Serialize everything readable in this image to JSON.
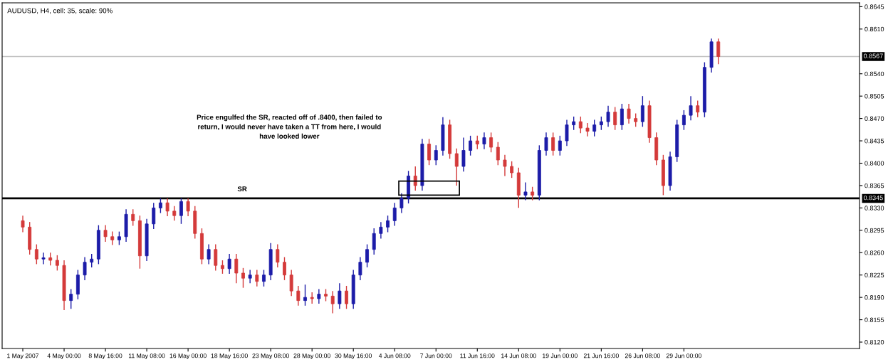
{
  "chart_data": {
    "type": "candlestick",
    "title": "AUDUSD, H4, cell: 35, scale: 90%",
    "categories": [
      "1 May 2007",
      null,
      null,
      null,
      null,
      null,
      "4 May 00:00",
      null,
      null,
      null,
      null,
      null,
      "8 May 16:00",
      null,
      null,
      null,
      null,
      null,
      "11 May 08:00",
      null,
      null,
      null,
      null,
      null,
      "16 May 00:00",
      null,
      null,
      null,
      null,
      null,
      "18 May 16:00",
      null,
      null,
      null,
      null,
      null,
      "23 May 08:00",
      null,
      null,
      null,
      null,
      null,
      "28 May 00:00",
      null,
      null,
      null,
      null,
      null,
      "30 May 16:00",
      null,
      null,
      null,
      null,
      null,
      "4 Jun 08:00",
      null,
      null,
      null,
      null,
      null,
      "7 Jun 00:00",
      null,
      null,
      null,
      null,
      null,
      "11 Jun 16:00",
      null,
      null,
      null,
      null,
      null,
      "14 Jun 08:00",
      null,
      null,
      null,
      null,
      null,
      "19 Jun 00:00",
      null,
      null,
      null,
      null,
      null,
      "21 Jun 16:00",
      null,
      null,
      null,
      null,
      null,
      "26 Jun 08:00",
      null,
      null,
      null,
      null,
      null,
      "29 Jun 00:00",
      null,
      null,
      null,
      null,
      null
    ],
    "ohlc": [
      [
        0.831,
        0.8318,
        0.8292,
        0.83
      ],
      [
        0.83,
        0.8308,
        0.8257,
        0.8265
      ],
      [
        0.8265,
        0.8273,
        0.8242,
        0.825
      ],
      [
        0.825,
        0.826,
        0.8242,
        0.8252
      ],
      [
        0.8252,
        0.826,
        0.824,
        0.8248
      ],
      [
        0.8248,
        0.8256,
        0.8232,
        0.824
      ],
      [
        0.824,
        0.8248,
        0.817,
        0.8185
      ],
      [
        0.8185,
        0.8203,
        0.8172,
        0.8195
      ],
      [
        0.8195,
        0.8233,
        0.8187,
        0.8225
      ],
      [
        0.8225,
        0.8253,
        0.8217,
        0.8245
      ],
      [
        0.8245,
        0.8258,
        0.8237,
        0.825
      ],
      [
        0.825,
        0.8303,
        0.8242,
        0.8295
      ],
      [
        0.8295,
        0.8303,
        0.8277,
        0.8285
      ],
      [
        0.8285,
        0.8293,
        0.8272,
        0.828
      ],
      [
        0.828,
        0.8293,
        0.8272,
        0.8285
      ],
      [
        0.8285,
        0.8328,
        0.8277,
        0.832
      ],
      [
        0.832,
        0.8328,
        0.8302,
        0.831
      ],
      [
        0.831,
        0.8318,
        0.8235,
        0.8255
      ],
      [
        0.8255,
        0.8313,
        0.8247,
        0.8305
      ],
      [
        0.8305,
        0.8338,
        0.8297,
        0.833
      ],
      [
        0.833,
        0.8345,
        0.8322,
        0.8338
      ],
      [
        0.8338,
        0.8345,
        0.8317,
        0.8325
      ],
      [
        0.8325,
        0.8333,
        0.831,
        0.8318
      ],
      [
        0.8318,
        0.8345,
        0.8305,
        0.834
      ],
      [
        0.834,
        0.8345,
        0.8317,
        0.8325
      ],
      [
        0.8325,
        0.8333,
        0.8282,
        0.829
      ],
      [
        0.829,
        0.8298,
        0.8242,
        0.825
      ],
      [
        0.825,
        0.8273,
        0.8242,
        0.8265
      ],
      [
        0.8265,
        0.8273,
        0.8232,
        0.824
      ],
      [
        0.824,
        0.8248,
        0.8227,
        0.8235
      ],
      [
        0.8235,
        0.8258,
        0.8227,
        0.825
      ],
      [
        0.825,
        0.8258,
        0.8212,
        0.8228
      ],
      [
        0.8228,
        0.8236,
        0.8205,
        0.822
      ],
      [
        0.822,
        0.8233,
        0.8212,
        0.8225
      ],
      [
        0.8225,
        0.8233,
        0.8207,
        0.8215
      ],
      [
        0.8215,
        0.8233,
        0.8207,
        0.8225
      ],
      [
        0.8225,
        0.8275,
        0.8217,
        0.8265
      ],
      [
        0.8265,
        0.8273,
        0.8237,
        0.8245
      ],
      [
        0.8245,
        0.8253,
        0.8217,
        0.8225
      ],
      [
        0.8225,
        0.8233,
        0.8192,
        0.82
      ],
      [
        0.82,
        0.8208,
        0.8177,
        0.8185
      ],
      [
        0.8185,
        0.821,
        0.8177,
        0.819
      ],
      [
        0.819,
        0.8198,
        0.818,
        0.8188
      ],
      [
        0.8188,
        0.8203,
        0.818,
        0.8195
      ],
      [
        0.8195,
        0.8203,
        0.8184,
        0.8192
      ],
      [
        0.8192,
        0.82,
        0.8165,
        0.818
      ],
      [
        0.818,
        0.8212,
        0.8172,
        0.82
      ],
      [
        0.82,
        0.8208,
        0.8172,
        0.818
      ],
      [
        0.818,
        0.8233,
        0.8172,
        0.8225
      ],
      [
        0.8225,
        0.8253,
        0.8217,
        0.8245
      ],
      [
        0.8245,
        0.8273,
        0.8237,
        0.8265
      ],
      [
        0.8265,
        0.8298,
        0.8257,
        0.829
      ],
      [
        0.829,
        0.8308,
        0.8282,
        0.83
      ],
      [
        0.83,
        0.8318,
        0.8292,
        0.831
      ],
      [
        0.831,
        0.8338,
        0.8302,
        0.833
      ],
      [
        0.833,
        0.8353,
        0.8322,
        0.8345
      ],
      [
        0.8345,
        0.8388,
        0.8337,
        0.838
      ],
      [
        0.838,
        0.8395,
        0.8357,
        0.8365
      ],
      [
        0.8365,
        0.8438,
        0.8357,
        0.843
      ],
      [
        0.843,
        0.8438,
        0.8397,
        0.8405
      ],
      [
        0.8405,
        0.8428,
        0.8397,
        0.842
      ],
      [
        0.842,
        0.8472,
        0.8412,
        0.846
      ],
      [
        0.846,
        0.8468,
        0.8407,
        0.8415
      ],
      [
        0.8415,
        0.8423,
        0.8365,
        0.8395
      ],
      [
        0.8395,
        0.844,
        0.8387,
        0.842
      ],
      [
        0.842,
        0.8443,
        0.8412,
        0.8435
      ],
      [
        0.8435,
        0.8443,
        0.8422,
        0.843
      ],
      [
        0.843,
        0.8448,
        0.8422,
        0.844
      ],
      [
        0.844,
        0.8448,
        0.8417,
        0.8425
      ],
      [
        0.8425,
        0.8433,
        0.8397,
        0.8405
      ],
      [
        0.8405,
        0.8413,
        0.838,
        0.8395
      ],
      [
        0.8395,
        0.8403,
        0.8377,
        0.8385
      ],
      [
        0.8385,
        0.8393,
        0.833,
        0.835
      ],
      [
        0.835,
        0.837,
        0.8342,
        0.8355
      ],
      [
        0.8355,
        0.8363,
        0.8342,
        0.835
      ],
      [
        0.835,
        0.8428,
        0.8342,
        0.842
      ],
      [
        0.842,
        0.8448,
        0.8412,
        0.844
      ],
      [
        0.844,
        0.8448,
        0.8412,
        0.842
      ],
      [
        0.842,
        0.8443,
        0.8412,
        0.8435
      ],
      [
        0.8435,
        0.8468,
        0.8427,
        0.846
      ],
      [
        0.846,
        0.8473,
        0.8452,
        0.8465
      ],
      [
        0.8465,
        0.8473,
        0.8447,
        0.8455
      ],
      [
        0.8455,
        0.8463,
        0.8442,
        0.845
      ],
      [
        0.845,
        0.8468,
        0.8442,
        0.846
      ],
      [
        0.846,
        0.8473,
        0.8452,
        0.8465
      ],
      [
        0.8465,
        0.849,
        0.8457,
        0.848
      ],
      [
        0.848,
        0.8488,
        0.8452,
        0.846
      ],
      [
        0.846,
        0.8493,
        0.8452,
        0.8485
      ],
      [
        0.8485,
        0.8493,
        0.8462,
        0.847
      ],
      [
        0.847,
        0.8478,
        0.8457,
        0.8465
      ],
      [
        0.8465,
        0.8505,
        0.8457,
        0.849
      ],
      [
        0.849,
        0.8498,
        0.8432,
        0.844
      ],
      [
        0.844,
        0.8448,
        0.8397,
        0.8405
      ],
      [
        0.8405,
        0.8413,
        0.835,
        0.8365
      ],
      [
        0.8365,
        0.8418,
        0.8357,
        0.841
      ],
      [
        0.841,
        0.8468,
        0.8402,
        0.846
      ],
      [
        0.846,
        0.8483,
        0.8452,
        0.8475
      ],
      [
        0.8475,
        0.8505,
        0.8467,
        0.849
      ],
      [
        0.849,
        0.8498,
        0.8472,
        0.848
      ],
      [
        0.848,
        0.8558,
        0.8472,
        0.855
      ],
      [
        0.855,
        0.8595,
        0.8542,
        0.859
      ],
      [
        0.859,
        0.8595,
        0.8555,
        0.8567
      ]
    ],
    "colors": [
      "#d43a3a",
      "#d43a3a",
      "#d43a3a",
      "#1c1ca8",
      "#d43a3a",
      "#d43a3a",
      "#d43a3a",
      "#1c1ca8",
      "#1c1ca8",
      "#1c1ca8",
      "#1c1ca8",
      "#1c1ca8",
      "#d43a3a",
      "#d43a3a",
      "#1c1ca8",
      "#1c1ca8",
      "#d43a3a",
      "#d43a3a",
      "#1c1ca8",
      "#1c1ca8",
      "#1c1ca8",
      "#d43a3a",
      "#d43a3a",
      "#1c1ca8",
      "#d43a3a",
      "#d43a3a",
      "#d43a3a",
      "#1c1ca8",
      "#d43a3a",
      "#d43a3a",
      "#1c1ca8",
      "#d43a3a",
      "#d43a3a",
      "#1c1ca8",
      "#d43a3a",
      "#1c1ca8",
      "#1c1ca8",
      "#d43a3a",
      "#d43a3a",
      "#d43a3a",
      "#d43a3a",
      "#1c1ca8",
      "#d43a3a",
      "#1c1ca8",
      "#d43a3a",
      "#d43a3a",
      "#1c1ca8",
      "#d43a3a",
      "#1c1ca8",
      "#1c1ca8",
      "#1c1ca8",
      "#1c1ca8",
      "#1c1ca8",
      "#1c1ca8",
      "#1c1ca8",
      "#1c1ca8",
      "#1c1ca8",
      "#d43a3a",
      "#1c1ca8",
      "#d43a3a",
      "#1c1ca8",
      "#1c1ca8",
      "#d43a3a",
      "#d43a3a",
      "#1c1ca8",
      "#1c1ca8",
      "#d43a3a",
      "#1c1ca8",
      "#d43a3a",
      "#d43a3a",
      "#d43a3a",
      "#d43a3a",
      "#d43a3a",
      "#1c1ca8",
      "#d43a3a",
      "#1c1ca8",
      "#1c1ca8",
      "#d43a3a",
      "#1c1ca8",
      "#1c1ca8",
      "#1c1ca8",
      "#d43a3a",
      "#d43a3a",
      "#1c1ca8",
      "#1c1ca8",
      "#1c1ca8",
      "#d43a3a",
      "#1c1ca8",
      "#d43a3a",
      "#d43a3a",
      "#1c1ca8",
      "#d43a3a",
      "#d43a3a",
      "#d43a3a",
      "#1c1ca8",
      "#1c1ca8",
      "#1c1ca8",
      "#1c1ca8",
      "#d43a3a",
      "#1c1ca8",
      "#1c1ca8",
      "#d43a3a"
    ],
    "ylim": [
      0.811,
      0.8651
    ],
    "yticks": [
      "0.8120",
      "0.8155",
      "0.8190",
      "0.8225",
      "0.8260",
      "0.8295",
      "0.8330",
      "0.8365",
      "0.8400",
      "0.8435",
      "0.8470",
      "0.8505",
      "0.8540",
      "0.8610",
      "0.8645"
    ],
    "ref_lines": [
      {
        "axis": "y",
        "value": 0.8345,
        "label": "0.8345",
        "color": "#000000"
      },
      {
        "axis": "y",
        "value": 0.8567,
        "label": "0.8567",
        "color": "#c0c0c0"
      }
    ],
    "annotations": [
      "Price engulfed the SR, reacted off of .8400, then failed to\nreturn, I would never have taken a TT from here, I would\nhave looked lower",
      "SR"
    ],
    "grid": false
  }
}
